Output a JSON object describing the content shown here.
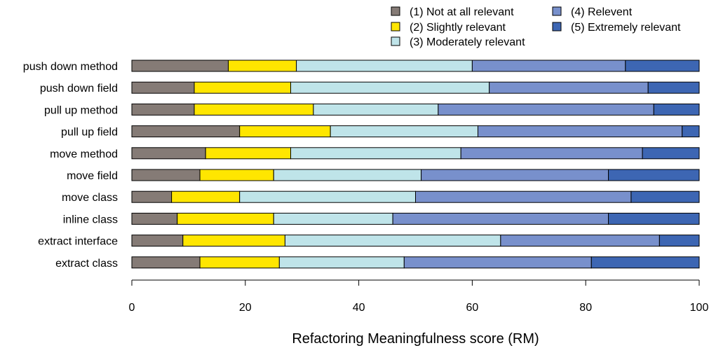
{
  "chart_data": {
    "type": "bar",
    "orientation": "horizontal",
    "stacked": true,
    "title": "",
    "xlabel": "Refactoring Meaningfulness score (RM)",
    "ylabel": "",
    "xlim": [
      0,
      100
    ],
    "xticks": [
      "0",
      "20",
      "40",
      "60",
      "80",
      "100"
    ],
    "grid": false,
    "legend_position": "top-right",
    "categories": [
      "push down method",
      "push down field",
      "pull up method",
      "pull up field",
      "move method",
      "move field",
      "move class",
      "inline class",
      "extract interface",
      "extract class"
    ],
    "series": [
      {
        "name": "(1) Not at all relevant",
        "color": "#857B76",
        "values": [
          17,
          11,
          11,
          19,
          13,
          12,
          7,
          8,
          9,
          12
        ]
      },
      {
        "name": "(2) Slightly relevant",
        "color": "#FFE600",
        "values": [
          12,
          17,
          21,
          16,
          15,
          13,
          12,
          17,
          18,
          14
        ]
      },
      {
        "name": "(3) Moderately relevant",
        "color": "#BFE4E9",
        "values": [
          31,
          35,
          22,
          26,
          30,
          26,
          31,
          21,
          38,
          22
        ]
      },
      {
        "name": "(4) Relevent",
        "color": "#7890CC",
        "values": [
          27,
          28,
          38,
          36,
          32,
          33,
          38,
          38,
          28,
          33
        ]
      },
      {
        "name": "(5) Extremely relevant",
        "color": "#3D66B3",
        "values": [
          13,
          9,
          8,
          3,
          10,
          16,
          12,
          16,
          7,
          19
        ]
      }
    ]
  }
}
